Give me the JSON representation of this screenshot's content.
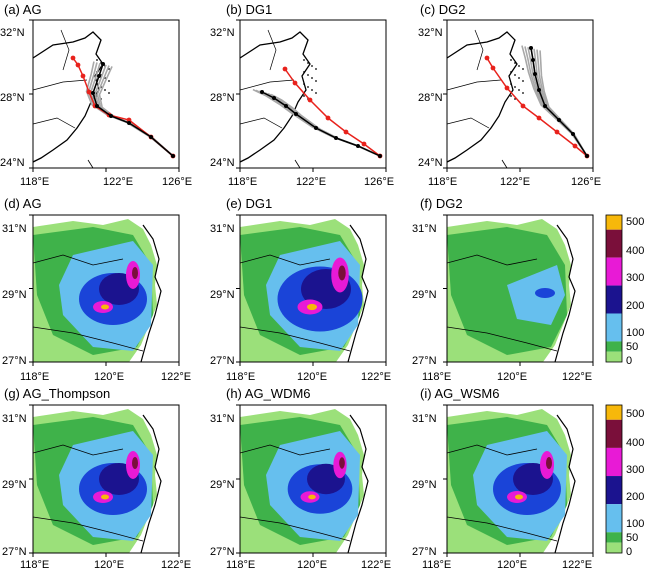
{
  "panels": [
    {
      "label": "(a) AG",
      "type": "track",
      "lat_ticks": [
        "32°N",
        "28°N",
        "24°N"
      ],
      "lon_ticks": [
        "118°E",
        "122°E",
        "126°E"
      ]
    },
    {
      "label": "(b) DG1",
      "type": "track",
      "lat_ticks": [
        "32°N",
        "28°N",
        "24°N"
      ],
      "lon_ticks": [
        "118°E",
        "122°E",
        "126°E"
      ]
    },
    {
      "label": "(c) DG2",
      "type": "track",
      "lat_ticks": [
        "32°N",
        "28°N",
        "24°N"
      ],
      "lon_ticks": [
        "118°E",
        "122°E",
        "126°E"
      ]
    },
    {
      "label": "(d) AG",
      "type": "rain",
      "lat_ticks": [
        "31°N",
        "29°N",
        "27°N"
      ],
      "lon_ticks": [
        "118°E",
        "120°E",
        "122°E"
      ]
    },
    {
      "label": "(e) DG1",
      "type": "rain",
      "lat_ticks": [
        "31°N",
        "29°N",
        "27°N"
      ],
      "lon_ticks": [
        "118°E",
        "120°E",
        "122°E"
      ]
    },
    {
      "label": "(f) DG2",
      "type": "rain",
      "lat_ticks": [
        "31°N",
        "29°N",
        "27°N"
      ],
      "lon_ticks": [
        "118°E",
        "120°E",
        "122°E"
      ]
    },
    {
      "label": "(g) AG_Thompson",
      "type": "rain",
      "lat_ticks": [
        "31°N",
        "29°N",
        "27°N"
      ],
      "lon_ticks": [
        "118°E",
        "120°E",
        "122°E"
      ]
    },
    {
      "label": "(h) AG_WDM6",
      "type": "rain",
      "lat_ticks": [
        "31°N",
        "29°N",
        "27°N"
      ],
      "lon_ticks": [
        "118°E",
        "120°E",
        "122°E"
      ]
    },
    {
      "label": "(i) AG_WSM6",
      "type": "rain",
      "lat_ticks": [
        "31°N",
        "29°N",
        "27°N"
      ],
      "lon_ticks": [
        "118°E",
        "120°E",
        "122°E"
      ]
    }
  ],
  "colorbar": {
    "levels": [
      "0",
      "50",
      "100",
      "200",
      "300",
      "400",
      "500"
    ],
    "colors": [
      "#9be07a",
      "#3fb24a",
      "#66bfee",
      "#1a44d8",
      "#1b138f",
      "#e81ad6",
      "#7a0f3a",
      "#f7b80a"
    ]
  },
  "colors": {
    "track_obs": "#e8221c",
    "track_ens": "#a8a8a8",
    "track_mean": "#000000",
    "coast": "#000000"
  }
}
